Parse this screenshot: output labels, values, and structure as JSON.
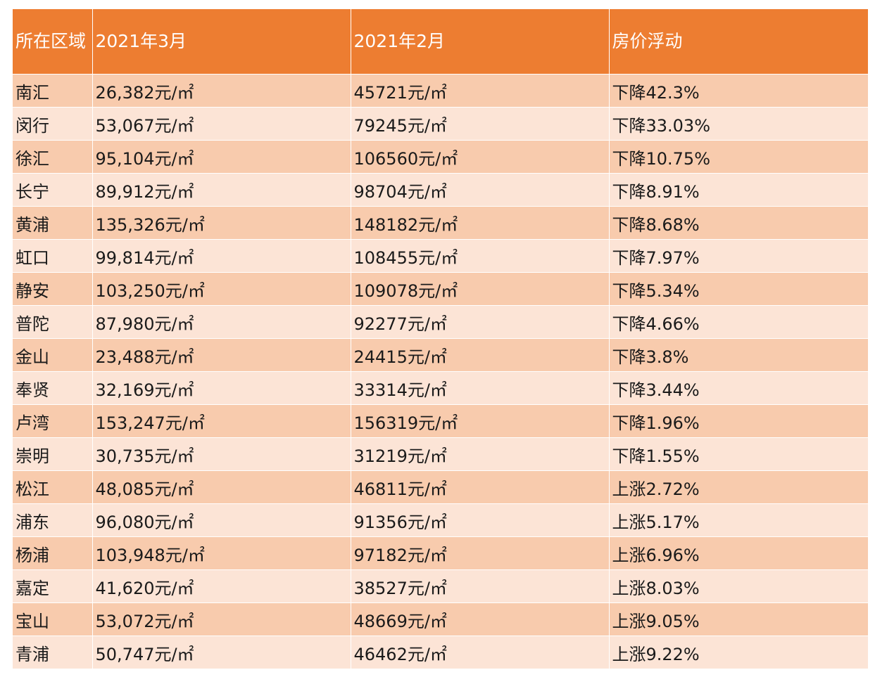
{
  "table": {
    "headers": [
      "所在区域",
      "2021年3月",
      "2021年2月",
      "房价浮动"
    ],
    "rows": [
      [
        "南汇",
        "26,382元/㎡",
        "45721元/㎡",
        "下降42.3%"
      ],
      [
        "闵行",
        "53,067元/㎡",
        "79245元/㎡",
        "下降33.03%"
      ],
      [
        "徐汇",
        "95,104元/㎡",
        "106560元/㎡",
        "下降10.75%"
      ],
      [
        "长宁",
        "89,912元/㎡",
        "98704元/㎡",
        "下降8.91%"
      ],
      [
        "黄浦",
        "135,326元/㎡",
        "148182元/㎡",
        "下降8.68%"
      ],
      [
        "虹口",
        "99,814元/㎡",
        "108455元/㎡",
        "下降7.97%"
      ],
      [
        "静安",
        "103,250元/㎡",
        "109078元/㎡",
        "下降5.34%"
      ],
      [
        "普陀",
        "87,980元/㎡",
        "92277元/㎡",
        "下降4.66%"
      ],
      [
        "金山",
        "23,488元/㎡",
        "24415元/㎡",
        "下降3.8%"
      ],
      [
        "奉贤",
        "32,169元/㎡",
        "33314元/㎡",
        "下降3.44%"
      ],
      [
        "卢湾",
        "153,247元/㎡",
        "156319元/㎡",
        "下降1.96%"
      ],
      [
        "崇明",
        "30,735元/㎡",
        "31219元/㎡",
        "下降1.55%"
      ],
      [
        "松江",
        "48,085元/㎡",
        "46811元/㎡",
        "上涨2.72%"
      ],
      [
        "浦东",
        "96,080元/㎡",
        "91356元/㎡",
        "上涨5.17%"
      ],
      [
        "杨浦",
        "103,948元/㎡",
        "97182元/㎡",
        "上涨6.96%"
      ],
      [
        "嘉定",
        "41,620元/㎡",
        "38527元/㎡",
        "上涨8.03%"
      ],
      [
        "宝山",
        "53,072元/㎡",
        "48669元/㎡",
        "上涨9.05%"
      ],
      [
        "青浦",
        "50,747元/㎡",
        "46462元/㎡",
        "上涨9.22%"
      ]
    ]
  },
  "colors": {
    "header_bg": "#ED7D31",
    "row_odd_bg": "#F8CBAD",
    "row_even_bg": "#FCE4D6",
    "header_text": "#FFFFFF"
  }
}
